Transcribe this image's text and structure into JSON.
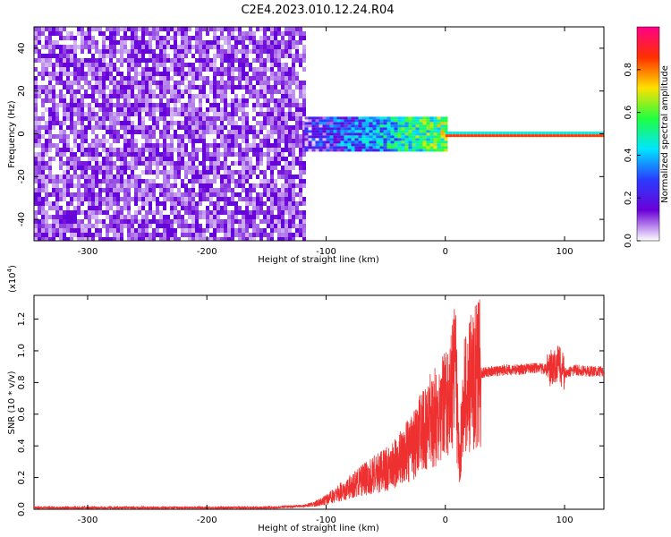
{
  "title": "C2E4.2023.010.12.24.R04",
  "colors": {
    "snr_line": "#ee3030",
    "colormap": [
      "#ffffff",
      "#6a00d8",
      "#2a3cff",
      "#00e5ff",
      "#20ff40",
      "#ffe000",
      "#ff3000",
      "#ff0088"
    ]
  },
  "chart_data": [
    {
      "type": "heatmap",
      "xlabel": "Height of straight line (km)",
      "ylabel": "Frequency (Hz)",
      "xlim": [
        -345,
        133
      ],
      "ylim": [
        -50,
        50
      ],
      "xticks": [
        "-300",
        "-200",
        "-100",
        "0",
        "100"
      ],
      "xtick_values": [
        -300,
        -200,
        -100,
        0,
        100
      ],
      "yticks": [
        "-40",
        "-20",
        "0",
        "20",
        "40"
      ],
      "ytick_values": [
        -40,
        -20,
        0,
        20,
        40
      ],
      "colorbar": {
        "label": "Normalized spectral amplitude",
        "range": [
          0.0,
          1.0
        ],
        "ticks": [
          "0.0",
          "0.2",
          "0.4",
          "0.6",
          "0.8"
        ],
        "tick_values": [
          0.0,
          0.2,
          0.4,
          0.6,
          0.8
        ]
      },
      "regions": [
        {
          "x": [
            -345,
            -118
          ],
          "freq": [
            -50,
            50
          ],
          "amplitude": 0.12,
          "description": "broadband noise"
        },
        {
          "x": [
            -118,
            0
          ],
          "freq": [
            -8,
            8
          ],
          "amplitude": 0.35,
          "description": "signal broadening"
        },
        {
          "x": [
            0,
            133
          ],
          "freq": [
            -1,
            1
          ],
          "amplitude": 0.85,
          "description": "narrow carrier"
        }
      ]
    },
    {
      "type": "line",
      "xlabel": "Height of straight line (km)",
      "ylabel": "SNR (10 * v/v)",
      "yscale_label": "(x10",
      "yscale_exp": "4",
      "xlim": [
        -345,
        133
      ],
      "ylim": [
        0,
        1.35
      ],
      "xticks": [
        "-300",
        "-200",
        "-100",
        "0",
        "100"
      ],
      "xtick_values": [
        -300,
        -200,
        -100,
        0,
        100
      ],
      "yticks": [
        "0.0",
        "0.2",
        "0.4",
        "0.6",
        "0.8",
        "1.0",
        "1.2"
      ],
      "ytick_values": [
        0.0,
        0.2,
        0.4,
        0.6,
        0.8,
        1.0,
        1.2
      ],
      "series": [
        {
          "x": [
            -345,
            -300,
            -250,
            -200,
            -150,
            -120,
            -110,
            -100,
            -90,
            -80,
            -70,
            -60,
            -50,
            -40,
            -30,
            -20,
            -10,
            0,
            5,
            8,
            10,
            12,
            15,
            20,
            25,
            30,
            40,
            50,
            60,
            70,
            80,
            85,
            90,
            95,
            100,
            105,
            110,
            120,
            133
          ],
          "values": [
            0.01,
            0.01,
            0.01,
            0.01,
            0.01,
            0.02,
            0.03,
            0.06,
            0.1,
            0.14,
            0.18,
            0.22,
            0.25,
            0.3,
            0.38,
            0.48,
            0.58,
            0.64,
            0.72,
            0.9,
            0.6,
            0.28,
            0.7,
            0.78,
            0.84,
            0.86,
            0.87,
            0.88,
            0.88,
            0.89,
            0.89,
            0.88,
            0.9,
            0.92,
            0.86,
            0.87,
            0.88,
            0.87,
            0.87
          ]
        }
      ]
    }
  ]
}
